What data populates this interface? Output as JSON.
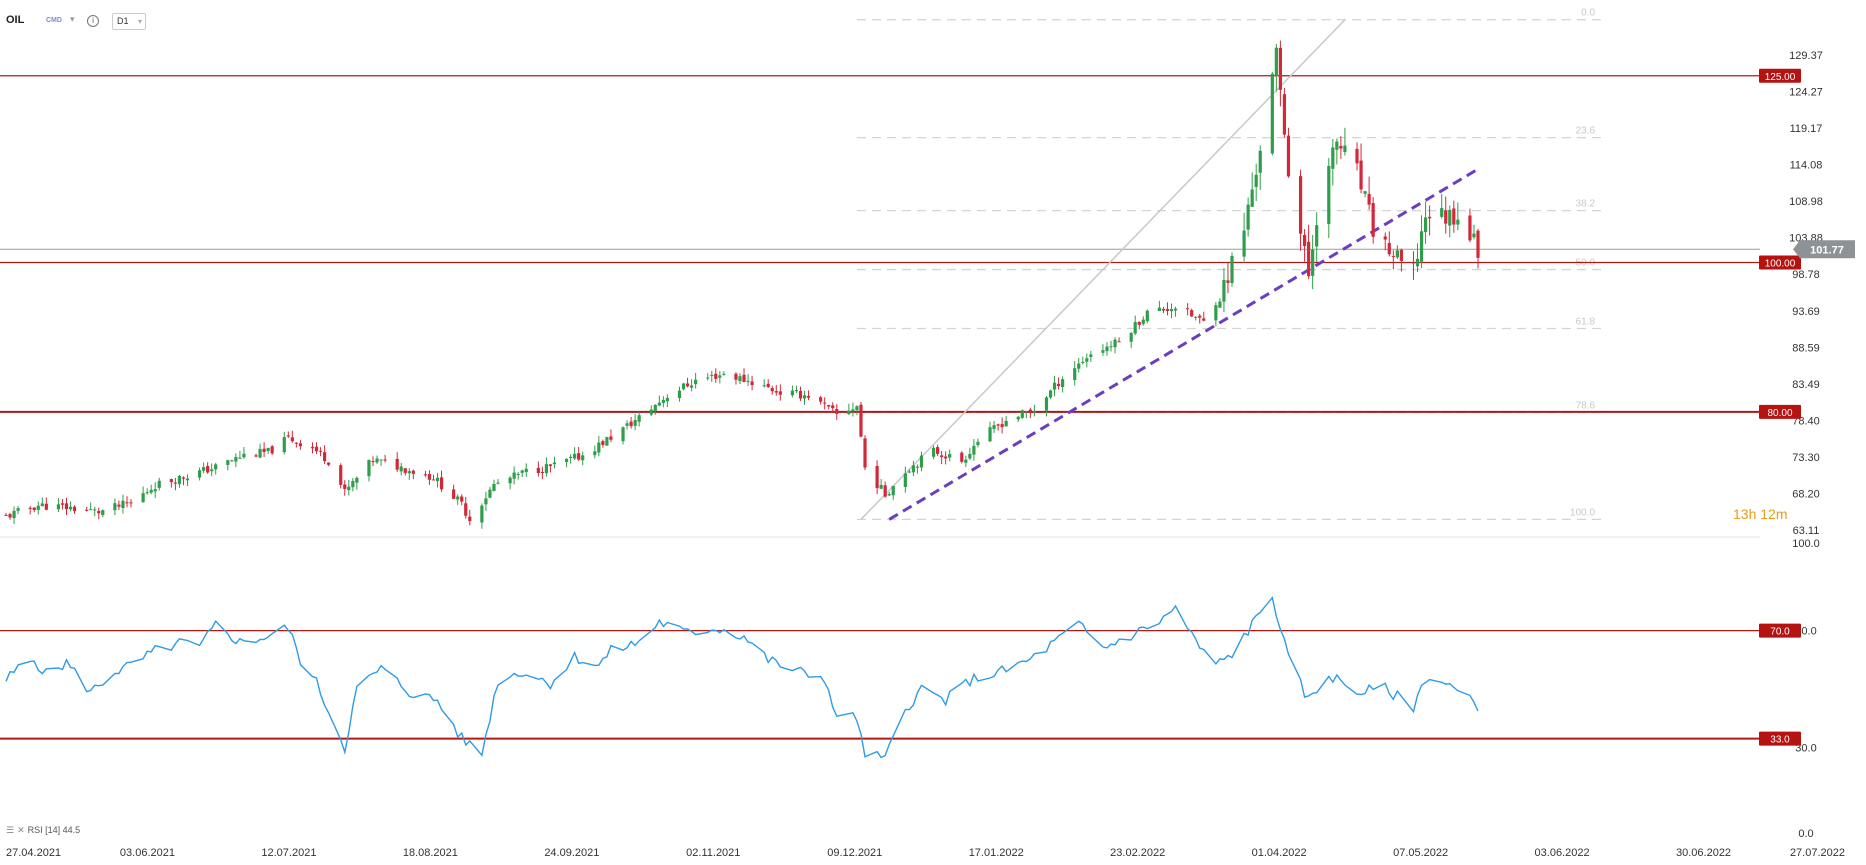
{
  "header": {
    "symbol": "OIL",
    "exchange": "CMD",
    "timeframe": "D1",
    "icons": [
      "chevron-down-icon",
      "info-icon",
      "chevron-down-icon"
    ]
  },
  "countdown": "13h 12m",
  "rsi_label": "RSI [14]  44.5",
  "chart_data": [
    {
      "type": "candlestick",
      "price_axis_ticks": [
        "129.37",
        "124.27",
        "119.17",
        "114.08",
        "108.98",
        "103.88",
        "98.78",
        "93.69",
        "88.59",
        "83.49",
        "78.40",
        "73.30",
        "68.20",
        "63.11"
      ],
      "ylim": [
        63.11,
        133.0
      ],
      "last_price": "101.77",
      "last_price_value": 101.77,
      "horizontal_levels": [
        {
          "label": "125.00",
          "value": 125.0
        },
        {
          "label": "100.00",
          "value": 100.0
        },
        {
          "label": "80.00",
          "value": 80.0
        }
      ],
      "fibonacci": {
        "low": 65.6,
        "high": 132.5,
        "levels": [
          {
            "label": "0.0",
            "ratio": 0.0
          },
          {
            "label": "23.6",
            "ratio": 0.236
          },
          {
            "label": "38.2",
            "ratio": 0.382
          },
          {
            "label": "50.0",
            "ratio": 0.5
          },
          {
            "label": "61.8",
            "ratio": 0.618
          },
          {
            "label": "78.6",
            "ratio": 0.786
          },
          {
            "label": "100.0",
            "ratio": 1.0
          }
        ]
      },
      "trendlines": [
        {
          "name": "purple-dashed-support",
          "from": [
            "2021-12-02",
            65.6
          ],
          "to": [
            "2022-04-27",
            112.5
          ],
          "color": "#6a3fbf",
          "dashed": true
        },
        {
          "name": "grey-channel-line",
          "from": [
            "2021-11-25",
            65.6
          ],
          "to": [
            "2022-03-25",
            132.5
          ],
          "color": "#c8c8c8",
          "dashed": false
        }
      ],
      "x_axis_ticks": [
        "27.04.2021",
        "03.06.2021",
        "12.07.2021",
        "18.08.2021",
        "24.09.2021",
        "02.11.2021",
        "09.12.2021",
        "17.01.2022",
        "23.02.2022",
        "01.04.2022",
        "07.05.2022",
        "03.06.2022",
        "30.06.2022",
        "27.07.2022"
      ],
      "close_path": [
        [
          "2021-04-27",
          66.0
        ],
        [
          "2021-05-05",
          67.5
        ],
        [
          "2021-05-12",
          67.2
        ],
        [
          "2021-05-20",
          66.6
        ],
        [
          "2021-05-28",
          67.8
        ],
        [
          "2021-06-03",
          70.2
        ],
        [
          "2021-06-10",
          71.3
        ],
        [
          "2021-06-18",
          72.6
        ],
        [
          "2021-06-25",
          74.2
        ],
        [
          "2021-07-01",
          74.6
        ],
        [
          "2021-07-06",
          76.5
        ],
        [
          "2021-07-12",
          75.2
        ],
        [
          "2021-07-16",
          73.5
        ],
        [
          "2021-07-20",
          69.2
        ],
        [
          "2021-07-27",
          73.6
        ],
        [
          "2021-08-04",
          72.4
        ],
        [
          "2021-08-11",
          71.2
        ],
        [
          "2021-08-18",
          67.6
        ],
        [
          "2021-08-20",
          65.6
        ],
        [
          "2021-08-26",
          70.2
        ],
        [
          "2021-09-03",
          72.0
        ],
        [
          "2021-09-10",
          72.8
        ],
        [
          "2021-09-17",
          74.2
        ],
        [
          "2021-09-24",
          76.6
        ],
        [
          "2021-10-01",
          79.2
        ],
        [
          "2021-10-08",
          82.2
        ],
        [
          "2021-10-15",
          84.2
        ],
        [
          "2021-10-22",
          85.1
        ],
        [
          "2021-10-29",
          84.0
        ],
        [
          "2021-11-05",
          82.6
        ],
        [
          "2021-11-12",
          82.2
        ],
        [
          "2021-11-19",
          79.6
        ],
        [
          "2021-11-24",
          80.8
        ],
        [
          "2021-11-26",
          72.5
        ],
        [
          "2021-12-01",
          68.9
        ],
        [
          "2021-12-06",
          72.1
        ],
        [
          "2021-12-13",
          74.8
        ],
        [
          "2021-12-20",
          73.4
        ],
        [
          "2021-12-24",
          76.2
        ],
        [
          "2021-12-31",
          78.9
        ],
        [
          "2022-01-07",
          80.3
        ],
        [
          "2022-01-14",
          84.6
        ],
        [
          "2022-01-21",
          87.8
        ],
        [
          "2022-01-28",
          89.4
        ],
        [
          "2022-02-04",
          93.3
        ],
        [
          "2022-02-11",
          94.1
        ],
        [
          "2022-02-18",
          92.0
        ],
        [
          "2022-02-23",
          96.8
        ],
        [
          "2022-02-28",
          104.5
        ],
        [
          "2022-03-03",
          112.5
        ],
        [
          "2022-03-08",
          127.5
        ],
        [
          "2022-03-11",
          112.7
        ],
        [
          "2022-03-16",
          98.2
        ],
        [
          "2022-03-18",
          106.4
        ],
        [
          "2022-03-23",
          116.2
        ],
        [
          "2022-03-28",
          112.0
        ],
        [
          "2022-04-01",
          104.4
        ],
        [
          "2022-04-07",
          100.2
        ],
        [
          "2022-04-11",
          98.5
        ],
        [
          "2022-04-14",
          106.6
        ],
        [
          "2022-04-19",
          106.2
        ],
        [
          "2022-04-22",
          106.6
        ],
        [
          "2022-04-27",
          101.8
        ]
      ]
    },
    {
      "type": "line",
      "series": [
        {
          "name": "RSI [14]",
          "color": "#2e9be6"
        }
      ],
      "ylim": [
        0.0,
        100.0
      ],
      "y_axis_ticks": [
        "100.0",
        "70.0",
        "30.0",
        "0.0"
      ],
      "horizontal_levels": [
        {
          "label": "70.0",
          "value": 70.0
        },
        {
          "label": "33.0",
          "value": 33.0
        }
      ],
      "last_value": 44.5,
      "rsi_path": [
        [
          "2021-04-27",
          53
        ],
        [
          "2021-04-30",
          57
        ],
        [
          "2021-05-04",
          60
        ],
        [
          "2021-05-07",
          55
        ],
        [
          "2021-05-12",
          59
        ],
        [
          "2021-05-18",
          49
        ],
        [
          "2021-05-24",
          56
        ],
        [
          "2021-05-28",
          58
        ],
        [
          "2021-06-03",
          63
        ],
        [
          "2021-06-10",
          66
        ],
        [
          "2021-06-14",
          64
        ],
        [
          "2021-06-18",
          72
        ],
        [
          "2021-06-24",
          66
        ],
        [
          "2021-07-01",
          68
        ],
        [
          "2021-07-06",
          71
        ],
        [
          "2021-07-09",
          60
        ],
        [
          "2021-07-13",
          52
        ],
        [
          "2021-07-20",
          30
        ],
        [
          "2021-07-23",
          50
        ],
        [
          "2021-07-29",
          57
        ],
        [
          "2021-08-05",
          49
        ],
        [
          "2021-08-12",
          46
        ],
        [
          "2021-08-18",
          33
        ],
        [
          "2021-08-23",
          28
        ],
        [
          "2021-08-27",
          53
        ],
        [
          "2021-09-02",
          56
        ],
        [
          "2021-09-09",
          52
        ],
        [
          "2021-09-15",
          61
        ],
        [
          "2021-09-21",
          58
        ],
        [
          "2021-09-24",
          63
        ],
        [
          "2021-10-01",
          66
        ],
        [
          "2021-10-06",
          73
        ],
        [
          "2021-10-13",
          69
        ],
        [
          "2021-10-20",
          71
        ],
        [
          "2021-10-27",
          68
        ],
        [
          "2021-11-02",
          60
        ],
        [
          "2021-11-09",
          56
        ],
        [
          "2021-11-16",
          54
        ],
        [
          "2021-11-19",
          39
        ],
        [
          "2021-11-23",
          43
        ],
        [
          "2021-11-26",
          28
        ],
        [
          "2021-12-01",
          26
        ],
        [
          "2021-12-06",
          43
        ],
        [
          "2021-12-10",
          50
        ],
        [
          "2021-12-16",
          46
        ],
        [
          "2021-12-22",
          53
        ],
        [
          "2021-12-30",
          56
        ],
        [
          "2022-01-06",
          60
        ],
        [
          "2022-01-12",
          66
        ],
        [
          "2022-01-18",
          72
        ],
        [
          "2022-01-24",
          64
        ],
        [
          "2022-02-01",
          69
        ],
        [
          "2022-02-08",
          74
        ],
        [
          "2022-02-11",
          78
        ],
        [
          "2022-02-16",
          66
        ],
        [
          "2022-02-21",
          58
        ],
        [
          "2022-02-25",
          62
        ],
        [
          "2022-03-02",
          72
        ],
        [
          "2022-03-07",
          82
        ],
        [
          "2022-03-11",
          60
        ],
        [
          "2022-03-16",
          46
        ],
        [
          "2022-03-21",
          55
        ],
        [
          "2022-03-28",
          49
        ],
        [
          "2022-04-04",
          50
        ],
        [
          "2022-04-11",
          44
        ],
        [
          "2022-04-14",
          54
        ],
        [
          "2022-04-19",
          52
        ],
        [
          "2022-04-25",
          46
        ],
        [
          "2022-04-27",
          44.5
        ]
      ]
    }
  ]
}
